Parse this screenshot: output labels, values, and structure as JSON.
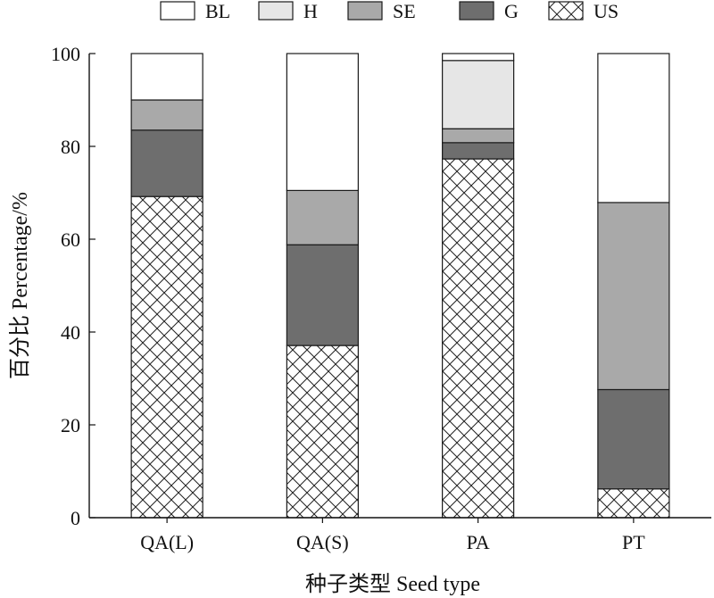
{
  "chart_data": {
    "type": "bar",
    "stacked": true,
    "categories": [
      "QA(L)",
      "QA(S)",
      "PA",
      "PT"
    ],
    "series": [
      {
        "name": "US",
        "values": [
          69.2,
          37.1,
          77.3,
          6.2
        ],
        "fill": "hatch",
        "color": "#ffffff"
      },
      {
        "name": "G",
        "values": [
          14.3,
          21.7,
          3.5,
          21.4
        ],
        "fill": "solid",
        "color": "#6e6e6e"
      },
      {
        "name": "SE",
        "values": [
          6.5,
          11.7,
          3.0,
          40.3
        ],
        "fill": "solid",
        "color": "#a9a9a9"
      },
      {
        "name": "H",
        "values": [
          0,
          0,
          14.7,
          0
        ],
        "fill": "solid",
        "color": "#e6e6e6"
      },
      {
        "name": "BL",
        "values": [
          10.0,
          29.5,
          1.5,
          32.1
        ],
        "fill": "solid",
        "color": "#ffffff"
      }
    ],
    "legend_order": [
      "BL",
      "H",
      "SE",
      "G",
      "US"
    ],
    "legend_position": "top",
    "xlabel": "种子类型 Seed type",
    "ylabel": "百分比 Percentage/%",
    "ylim": [
      0,
      100
    ],
    "yticks": [
      0,
      20,
      40,
      60,
      80,
      100
    ],
    "grid": false
  }
}
